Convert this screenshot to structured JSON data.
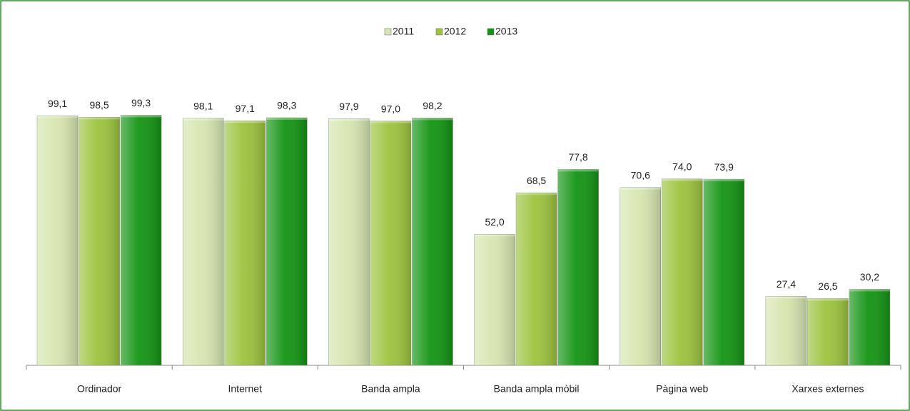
{
  "chart_data": {
    "type": "bar",
    "categories": [
      "Ordinador",
      "Internet",
      "Banda ampla",
      "Banda ampla mòbil",
      "Pàgina web",
      "Xarxes externes"
    ],
    "series": [
      {
        "name": "2011",
        "color": "#d6e6b0",
        "values": [
          99.1,
          98.1,
          97.9,
          52.0,
          70.6,
          27.4
        ],
        "value_labels": [
          "99,1",
          "98,1",
          "97,9",
          "52,0",
          "70,6",
          "27,4"
        ]
      },
      {
        "name": "2012",
        "color": "#9cc43e",
        "values": [
          98.5,
          97.1,
          97.0,
          68.5,
          74.0,
          26.5
        ],
        "value_labels": [
          "98,5",
          "97,1",
          "97,0",
          "68,5",
          "74,0",
          "26,5"
        ]
      },
      {
        "name": "2013",
        "color": "#149414",
        "values": [
          99.3,
          98.3,
          98.2,
          77.8,
          73.9,
          30.2
        ],
        "value_labels": [
          "99,3",
          "98,3",
          "98,2",
          "77,8",
          "73,9",
          "30,2"
        ]
      }
    ],
    "ylim": [
      0,
      100
    ],
    "legend": "top"
  }
}
